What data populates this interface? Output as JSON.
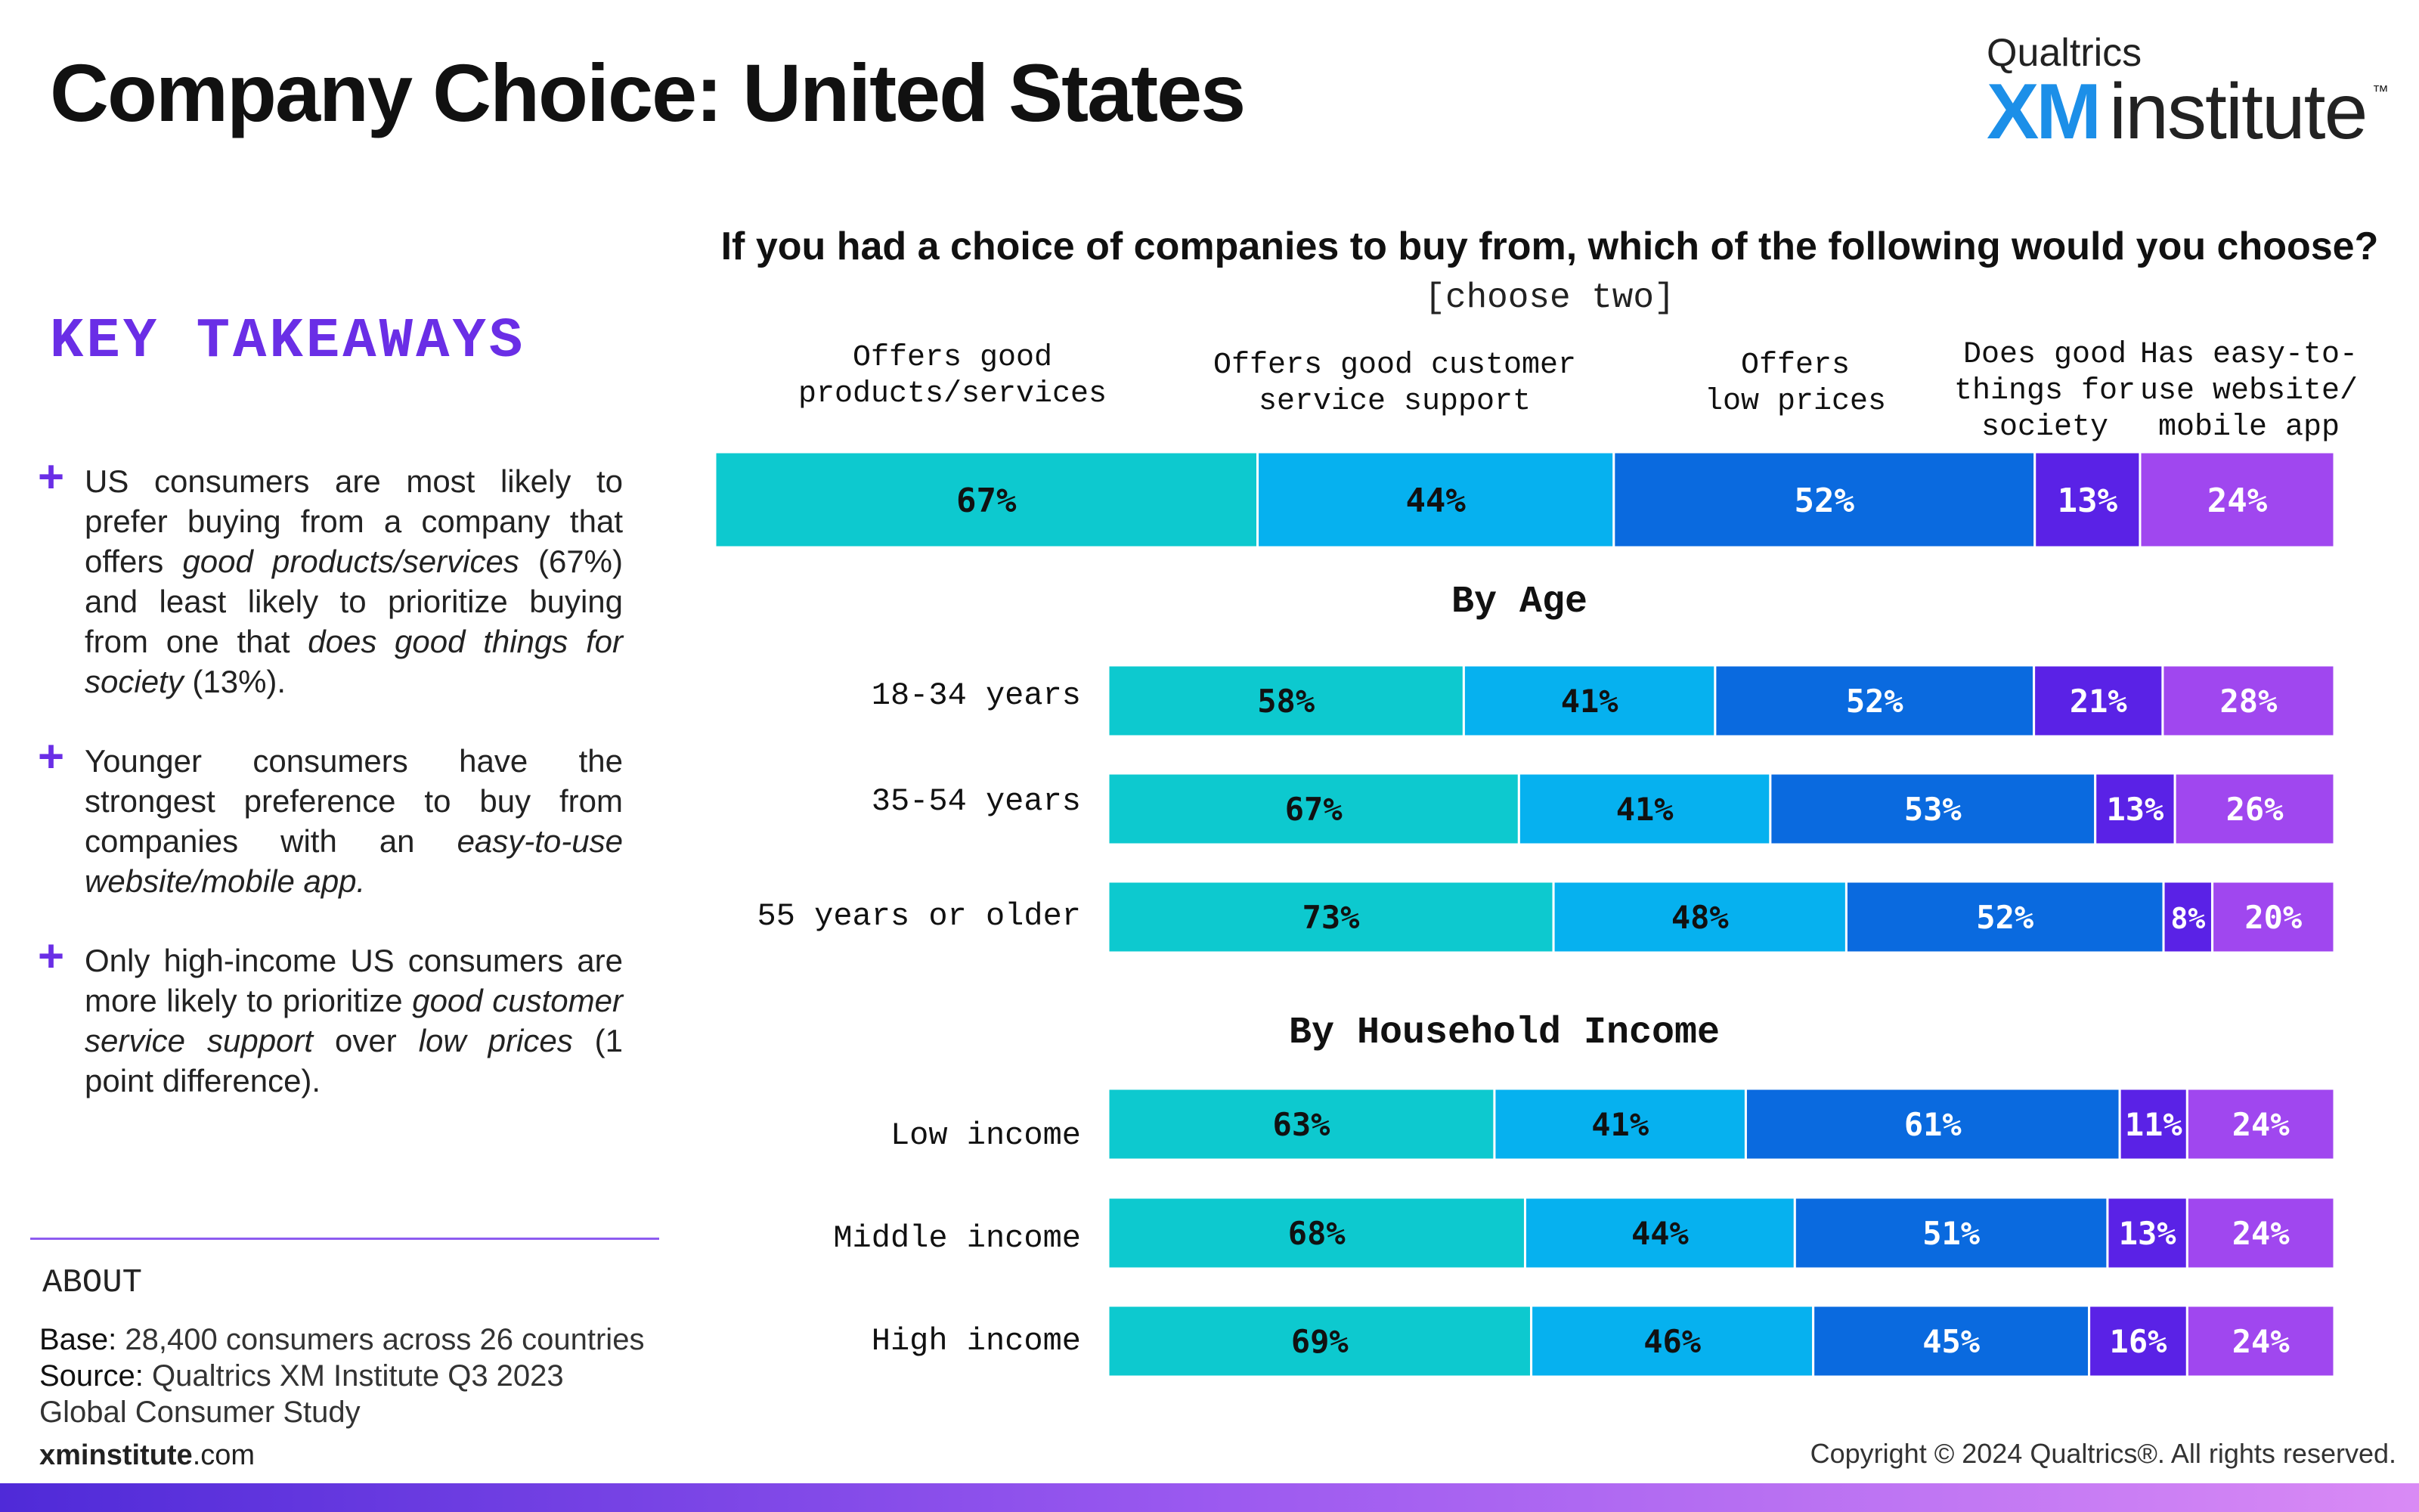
{
  "header": {
    "title": "Company Choice: United States",
    "logo_top": "Qualtrics",
    "logo_xm": "XM",
    "logo_institute": "institute",
    "logo_tm": "™"
  },
  "takeaways": {
    "heading": "KEY TAKEAWAYS",
    "bullet": "+",
    "items": [
      {
        "parts": [
          {
            "t": "US consumers are most likely to prefer buying from a company that offers ",
            "i": false
          },
          {
            "t": "good products/services",
            "i": true
          },
          {
            "t": " (67%) and least likely to prioritize buying from one that ",
            "i": false
          },
          {
            "t": "does good things for society",
            "i": true
          },
          {
            "t": " (13%).",
            "i": false
          }
        ]
      },
      {
        "parts": [
          {
            "t": "Younger consumers have the strongest preference to buy from companies with an ",
            "i": false
          },
          {
            "t": "easy-to-use website/mobile app.",
            "i": true
          }
        ]
      },
      {
        "parts": [
          {
            "t": "Only high-income US consumers are more likely to prioritize ",
            "i": false
          },
          {
            "t": "good customer service support",
            "i": true
          },
          {
            "t": " over ",
            "i": false
          },
          {
            "t": "low prices",
            "i": true
          },
          {
            "t": " (1 point difference).",
            "i": false
          }
        ]
      }
    ]
  },
  "about": {
    "heading": "ABOUT",
    "base_key": "Base:",
    "base_value": " 28,400 consumers across 26 countries",
    "source_key": "Source:",
    "source_value": " Qualtrics XM Institute Q3 2023 Global Consumer Study"
  },
  "footer": {
    "site_bold": "xminstitute",
    "site_rest": ".com",
    "copyright": "Copyright © 2024 Qualtrics®. All rights reserved."
  },
  "chart_data": {
    "type": "bar",
    "orientation": "horizontal",
    "stacked": true,
    "title": "If you had a choice of companies to buy from, which of the following would you choose?",
    "subtitle": "[choose two]",
    "series": [
      {
        "name": "Offers good\nproducts/services",
        "color": "#0dc9cf"
      },
      {
        "name": "Offers good customer\nservice support",
        "color": "#06b1ef"
      },
      {
        "name": "Offers\nlow prices",
        "color": "#0a6adf"
      },
      {
        "name": "Does good\nthings for\nsociety",
        "color": "#5a22e6"
      },
      {
        "name": "Has easy-to-\nuse website/\nmobile app",
        "color": "#a047ef"
      }
    ],
    "overall": {
      "label": "",
      "values": [
        67,
        44,
        52,
        13,
        24
      ]
    },
    "groups": [
      {
        "title": "By Age",
        "rows": [
          {
            "label": "18-34 years",
            "values": [
              58,
              41,
              52,
              21,
              28
            ]
          },
          {
            "label": "35-54 years",
            "values": [
              67,
              41,
              53,
              13,
              26
            ]
          },
          {
            "label": "55 years or older",
            "values": [
              73,
              48,
              52,
              8,
              20
            ]
          }
        ]
      },
      {
        "title": "By Household Income",
        "rows": [
          {
            "label": "Low income",
            "values": [
              63,
              41,
              61,
              11,
              24
            ]
          },
          {
            "label": "Middle income",
            "values": [
              68,
              44,
              51,
              13,
              24
            ]
          },
          {
            "label": "High income",
            "values": [
              69,
              46,
              45,
              16,
              24
            ]
          }
        ]
      }
    ],
    "value_suffix": "%",
    "legend": "column-headers-above",
    "grid": false
  }
}
